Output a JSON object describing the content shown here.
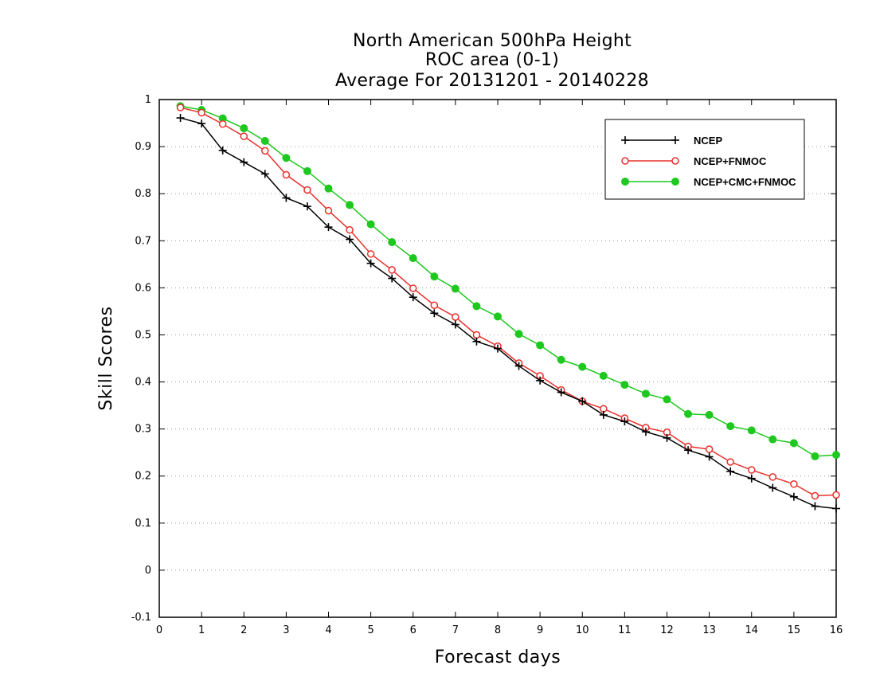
{
  "chart_data": {
    "type": "line",
    "title": [
      "North American 500hPa Height",
      "ROC area (0-1)",
      "Average For 20131201 - 20140228"
    ],
    "xlabel": "Forecast days",
    "ylabel": "Skill Scores",
    "xlim": [
      0,
      16
    ],
    "ylim": [
      -0.1,
      1
    ],
    "xticks": [
      "0",
      "1",
      "2",
      "3",
      "4",
      "5",
      "6",
      "7",
      "8",
      "9",
      "10",
      "11",
      "12",
      "13",
      "14",
      "15",
      "16"
    ],
    "yticks": [
      "-0.1",
      "0",
      "0.1",
      "0.2",
      "0.3",
      "0.4",
      "0.5",
      "0.6",
      "0.7",
      "0.8",
      "0.9",
      "1"
    ],
    "grid": "horizontal dotted",
    "legend_position": "top-right",
    "x": [
      0.5,
      1,
      1.5,
      2,
      2.5,
      3,
      3.5,
      4,
      4.5,
      5,
      5.5,
      6,
      6.5,
      7,
      7.5,
      8,
      8.5,
      9,
      9.5,
      10,
      10.5,
      11,
      11.5,
      12,
      12.5,
      13,
      13.5,
      14,
      14.5,
      15,
      15.5,
      16
    ],
    "series": [
      {
        "name": "NCEP",
        "color": "#000000",
        "marker": "plus",
        "values": [
          0.961,
          0.949,
          0.892,
          0.867,
          0.842,
          0.791,
          0.773,
          0.729,
          0.703,
          0.652,
          0.62,
          0.58,
          0.546,
          0.522,
          0.486,
          0.471,
          0.434,
          0.403,
          0.378,
          0.359,
          0.33,
          0.316,
          0.294,
          0.281,
          0.255,
          0.241,
          0.21,
          0.195,
          0.175,
          0.156,
          0.136,
          0.131
        ]
      },
      {
        "name": "NCEP+FNMOC",
        "color": "#e8302c",
        "marker": "open-circle",
        "values": [
          0.983,
          0.972,
          0.948,
          0.922,
          0.891,
          0.84,
          0.808,
          0.764,
          0.723,
          0.672,
          0.638,
          0.599,
          0.563,
          0.538,
          0.5,
          0.476,
          0.44,
          0.413,
          0.383,
          0.359,
          0.343,
          0.323,
          0.303,
          0.293,
          0.263,
          0.257,
          0.23,
          0.213,
          0.198,
          0.183,
          0.158,
          0.16
        ]
      },
      {
        "name": "NCEP+CMC+FNMOC",
        "color": "#1ec81e",
        "marker": "filled-circle",
        "values": [
          0.986,
          0.978,
          0.96,
          0.939,
          0.912,
          0.876,
          0.848,
          0.811,
          0.776,
          0.735,
          0.697,
          0.663,
          0.624,
          0.598,
          0.561,
          0.539,
          0.502,
          0.478,
          0.447,
          0.432,
          0.413,
          0.394,
          0.375,
          0.363,
          0.332,
          0.33,
          0.306,
          0.297,
          0.278,
          0.27,
          0.242,
          0.245
        ]
      }
    ]
  }
}
